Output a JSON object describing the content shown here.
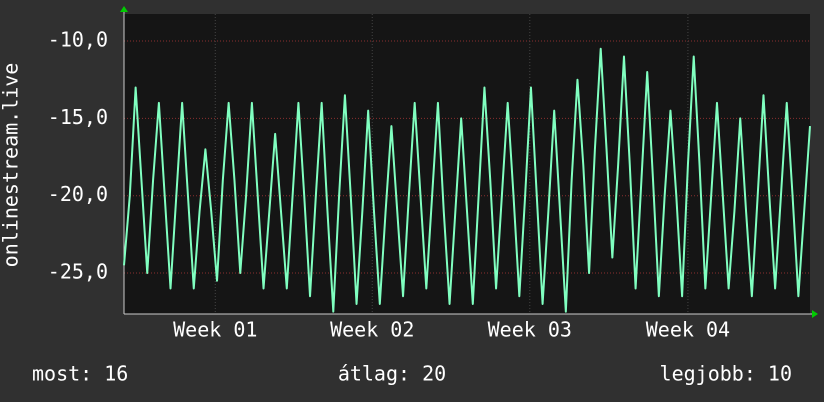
{
  "chart_data": {
    "type": "line",
    "y_label": "onlinestream.live",
    "values": [
      -24.5,
      -20,
      -13,
      -19,
      -25,
      -19,
      -14,
      -20,
      -26,
      -20,
      -14,
      -20,
      -26,
      -21,
      -17,
      -21,
      -25.5,
      -19,
      -14,
      -19,
      -25,
      -20,
      -14,
      -20,
      -26,
      -21,
      -16,
      -21,
      -26,
      -20,
      -14,
      -20,
      -26.5,
      -20,
      -14,
      -21,
      -27.5,
      -20,
      -13.5,
      -20,
      -27,
      -21,
      -14.5,
      -21,
      -27,
      -21,
      -15.5,
      -21,
      -26.5,
      -20,
      -14,
      -20,
      -26,
      -20,
      -14,
      -21,
      -27,
      -21,
      -15,
      -21,
      -27,
      -20,
      -13,
      -19,
      -26,
      -20,
      -14,
      -20,
      -26.5,
      -20,
      -13,
      -20,
      -27,
      -21,
      -14.5,
      -21,
      -27.5,
      -19,
      -12.5,
      -18,
      -25,
      -17,
      -10.5,
      -17,
      -24,
      -18,
      -11,
      -18,
      -26,
      -19,
      -12,
      -19,
      -26.5,
      -20,
      -14.5,
      -20,
      -26.5,
      -18,
      -11,
      -18,
      -26,
      -20,
      -14,
      -20,
      -26,
      -21,
      -15,
      -21,
      -26.5,
      -20,
      -13.5,
      -20,
      -26,
      -20,
      -14,
      -20,
      -26.5,
      -21,
      -15.5
    ],
    "color": "#80ffc0",
    "xlim": [
      0,
      118
    ],
    "xticks": [
      {
        "value": 15.7,
        "label": "Week 01"
      },
      {
        "value": 42.7,
        "label": "Week 02"
      },
      {
        "value": 69.8,
        "label": "Week 03"
      },
      {
        "value": 97,
        "label": "Week 04"
      }
    ],
    "ylim": [
      -27.65,
      -8.25
    ],
    "yticks": [
      {
        "value": -10,
        "label": "-10,0"
      },
      {
        "value": -15,
        "label": "-15,0"
      },
      {
        "value": -20,
        "label": "-20,0"
      },
      {
        "value": -25,
        "label": "-25,0"
      }
    ],
    "grid": true,
    "annotations": [
      "most: 16",
      "átlag: 20",
      "legjobb: 10"
    ]
  }
}
